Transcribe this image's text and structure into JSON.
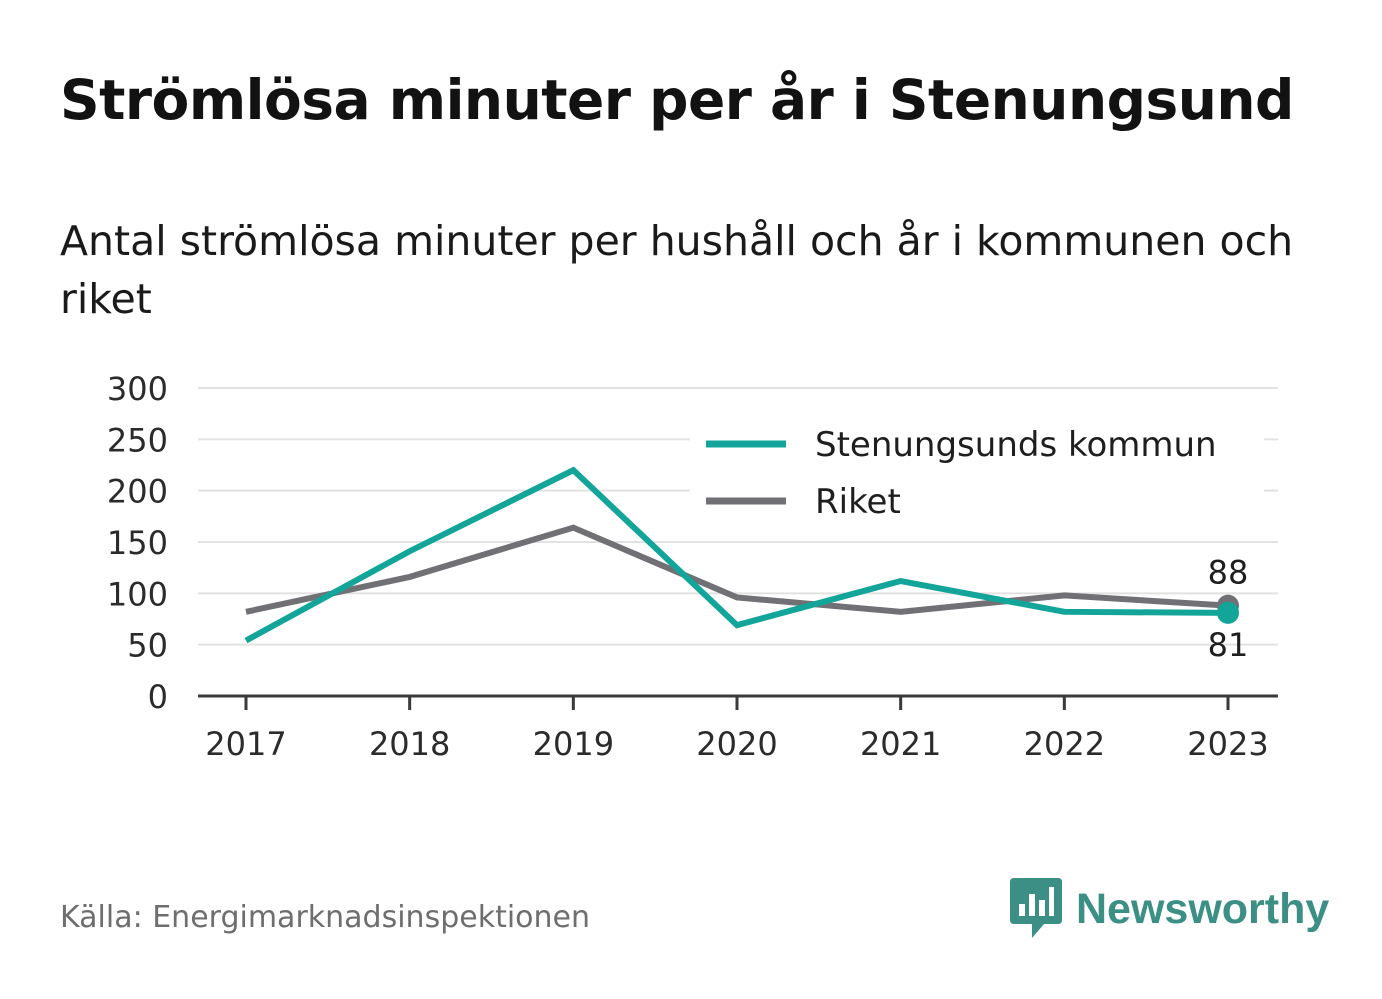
{
  "title": "Strömlösa minuter per år i Stenungsund",
  "subtitle": "Antal strömlösa minuter per hushåll och år i kommunen och riket",
  "source": "Källa: Energimarknadsinspektionen",
  "brand": {
    "name": "Newsworthy",
    "icon": "newsworthy-logo-icon",
    "color": "#3b8f84"
  },
  "chart_data": {
    "type": "line",
    "x": [
      "2017",
      "2018",
      "2019",
      "2020",
      "2021",
      "2022",
      "2023"
    ],
    "ylim": [
      0,
      300
    ],
    "yticks": [
      "0",
      "50",
      "100",
      "150",
      "200",
      "250",
      "300"
    ],
    "grid": true,
    "legend_position": "top-right",
    "series": [
      {
        "name": "Stenungsunds kommun",
        "color": "#14a59a",
        "values": [
          54,
          141,
          220,
          69,
          112,
          82,
          81
        ],
        "end_label": "81"
      },
      {
        "name": "Riket",
        "color": "#717075",
        "values": [
          82,
          116,
          164,
          96,
          82,
          98,
          88
        ],
        "end_label": "88"
      }
    ]
  }
}
